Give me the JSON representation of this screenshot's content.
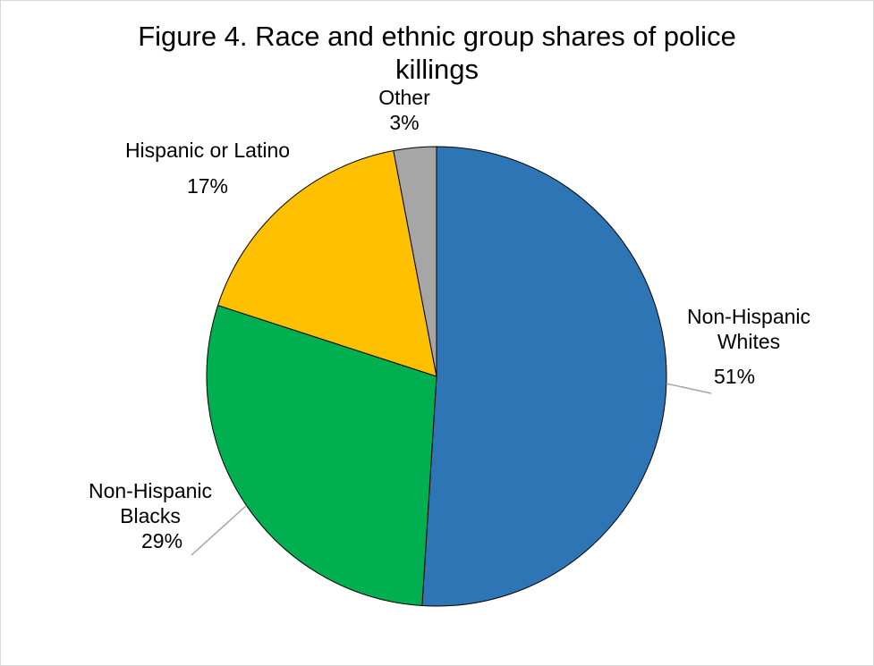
{
  "chart_data": {
    "type": "pie",
    "title_line1": "Figure 4. Race and ethnic group shares of police",
    "title_line2": "killings",
    "slices": [
      {
        "name": "Non-Hispanic Whites",
        "name_line1": "Non-Hispanic",
        "name_line2": "Whites",
        "value": 51,
        "label": "51%",
        "color": "#2E75B6"
      },
      {
        "name": "Non-Hispanic Blacks",
        "name_line1": "Non-Hispanic",
        "name_line2": "Blacks",
        "value": 29,
        "label": "29%",
        "color": "#00B050"
      },
      {
        "name": "Hispanic or Latino",
        "name_line1": "Hispanic or Latino",
        "name_line2": "",
        "value": 17,
        "label": "17%",
        "color": "#FFC000"
      },
      {
        "name": "Other",
        "name_line1": "Other",
        "name_line2": "",
        "value": 3,
        "label": "3%",
        "color": "#A6A6A6"
      }
    ],
    "start_angle": "12 o'clock",
    "direction": "clockwise",
    "legend": "none",
    "leader_line_color": "#A6A6A6",
    "slice_border_color": "#000000"
  }
}
